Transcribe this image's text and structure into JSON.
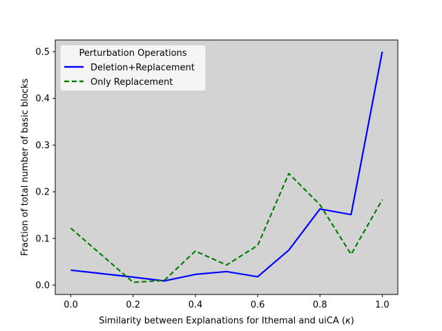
{
  "chart_data": {
    "type": "line",
    "xlabel": "Similarity between Explanations for Ithemal and uiCA (",
    "xlabel_symbol": "κ",
    "xlabel_suffix": ")",
    "ylabel": "Fraction of total number of basic blocks",
    "xlim": [
      -0.05,
      1.05
    ],
    "ylim": [
      -0.02,
      0.525
    ],
    "xticks": [
      0.0,
      0.2,
      0.4,
      0.6,
      0.8,
      1.0
    ],
    "xtick_labels": [
      "0.0",
      "0.2",
      "0.4",
      "0.6",
      "0.8",
      "1.0"
    ],
    "yticks": [
      0.0,
      0.1,
      0.2,
      0.3,
      0.4,
      0.5
    ],
    "ytick_labels": [
      "0.0",
      "0.1",
      "0.2",
      "0.3",
      "0.4",
      "0.5"
    ],
    "x": [
      0.0,
      0.2,
      0.3,
      0.4,
      0.5,
      0.6,
      0.7,
      0.8,
      0.9,
      1.0
    ],
    "grid": false,
    "legend": {
      "title": "Perturbation Operations",
      "placement": "top-left"
    },
    "series": [
      {
        "name": "Deletion+Replacement",
        "color": "#0000ff",
        "style": "solid",
        "values": [
          0.032,
          0.017,
          0.009,
          0.023,
          0.029,
          0.018,
          0.075,
          0.163,
          0.151,
          0.5
        ]
      },
      {
        "name": "Only Replacement",
        "color": "#008000",
        "style": "dashed",
        "values": [
          0.122,
          0.006,
          0.01,
          0.073,
          0.043,
          0.085,
          0.239,
          0.172,
          0.066,
          0.183
        ]
      }
    ],
    "plot_background": "#d3d3d3",
    "legend_background": "#f5f5f5"
  }
}
